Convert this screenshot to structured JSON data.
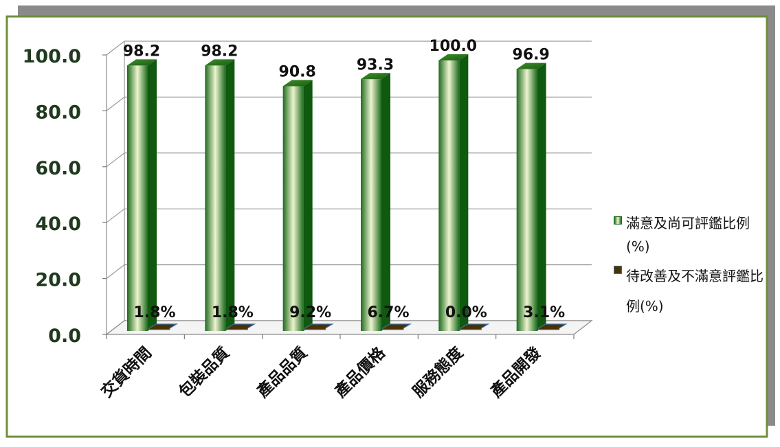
{
  "chart_data": {
    "type": "bar",
    "categories": [
      "交貨時間",
      "包裝品質",
      "產品品質",
      "產品價格",
      "服務態度",
      "產品開發"
    ],
    "series": [
      {
        "name": "滿意及尚可評鑑比例(%)",
        "values": [
          98.2,
          98.2,
          90.8,
          93.3,
          100.0,
          96.9
        ],
        "labels": [
          "98.2",
          "98.2",
          "90.8",
          "93.3",
          "100.0",
          "96.9"
        ],
        "color": "#2e8b2e"
      },
      {
        "name": "待改善及不滿意評鑑比例(%)",
        "values": [
          1.8,
          1.8,
          9.2,
          6.7,
          0.0,
          3.1
        ],
        "labels": [
          "1.8%",
          "1.8%",
          "9.2%",
          "6.7%",
          "0.0%",
          "3.1%"
        ],
        "color": "#4a3300"
      }
    ],
    "yticks": [
      "0.0",
      "20.0",
      "40.0",
      "60.0",
      "80.0",
      "100.0"
    ],
    "ylim": [
      0,
      100
    ],
    "grid": true,
    "legend_position": "right",
    "style": "3d-column",
    "title": "",
    "xlabel": "",
    "ylabel": ""
  },
  "colors": {
    "bar_dark": "#0f5a0f",
    "bar_light": "#eaf2c8",
    "frame_shadow": "#8a8a8a",
    "frame_border": "#6f8f3a",
    "axis_text": "#1f3a1f"
  }
}
